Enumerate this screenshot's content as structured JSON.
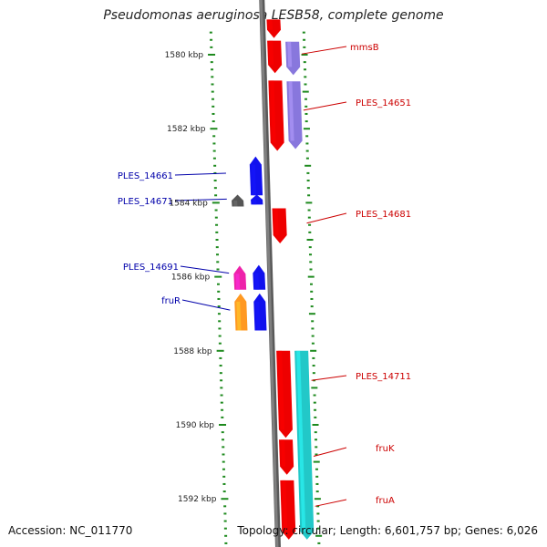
{
  "title": "Pseudomonas aeruginosa LESB58, complete genome",
  "footer": {
    "accession": "Accession: NC_011770",
    "topology": "Topology: circular; Length: 6,601,757 bp; Genes: 6,026"
  },
  "colors": {
    "backbone": "#808080",
    "tick": "#1e8a1e",
    "red": "#ee0000",
    "purple": "#8877dd",
    "blue": "#1111ee",
    "teal": "#22c8c8",
    "pink": "#ee22aa",
    "orange": "#ff9922",
    "gray": "#555555",
    "label_right": "#cc0000",
    "label_left": "#0000aa"
  },
  "kbp_labels": [
    {
      "kbp": 1580,
      "text": "1580 kbp"
    },
    {
      "kbp": 1582,
      "text": "1582 kbp"
    },
    {
      "kbp": 1584,
      "text": "1584 kbp"
    },
    {
      "kbp": 1586,
      "text": "1586 kbp"
    },
    {
      "kbp": 1588,
      "text": "1588 kbp"
    },
    {
      "kbp": 1590,
      "text": "1590 kbp"
    },
    {
      "kbp": 1592,
      "text": "1592 kbp"
    }
  ],
  "genes": [
    {
      "track": "fwd1",
      "start": 1579.05,
      "end": 1579.55,
      "strand": "-",
      "color": "red"
    },
    {
      "track": "fwd1",
      "start": 1579.62,
      "end": 1580.5,
      "strand": "-",
      "color": "red"
    },
    {
      "track": "fwd1",
      "start": 1580.7,
      "end": 1582.6,
      "strand": "-",
      "color": "red"
    },
    {
      "track": "fwd2",
      "start": 1579.65,
      "end": 1580.55,
      "strand": "-",
      "color": "purple"
    },
    {
      "track": "fwd2",
      "start": 1580.72,
      "end": 1582.55,
      "strand": "-",
      "color": "purple"
    },
    {
      "track": "fwd1",
      "start": 1584.15,
      "end": 1585.1,
      "strand": "-",
      "color": "red"
    },
    {
      "track": "fwd1",
      "start": 1588.0,
      "end": 1590.35,
      "strand": "-",
      "color": "red"
    },
    {
      "track": "fwd1",
      "start": 1590.4,
      "end": 1591.35,
      "strand": "-",
      "color": "red"
    },
    {
      "track": "fwd1",
      "start": 1591.5,
      "end": 1593.1,
      "strand": "-",
      "color": "red"
    },
    {
      "track": "fwd2",
      "start": 1588.0,
      "end": 1593.1,
      "strand": "-",
      "color": "teal"
    },
    {
      "track": "rev1",
      "start": 1582.75,
      "end": 1583.8,
      "strand": "+",
      "color": "blue"
    },
    {
      "track": "rev1",
      "start": 1583.78,
      "end": 1584.05,
      "strand": "+",
      "color": "blue"
    },
    {
      "track": "rev2",
      "start": 1583.78,
      "end": 1584.1,
      "strand": "+",
      "color": "gray"
    },
    {
      "track": "rev1",
      "start": 1585.68,
      "end": 1586.35,
      "strand": "+",
      "color": "blue"
    },
    {
      "track": "rev1",
      "start": 1586.45,
      "end": 1587.45,
      "strand": "+",
      "color": "blue"
    },
    {
      "track": "rev2",
      "start": 1585.7,
      "end": 1586.35,
      "strand": "+",
      "color": "pink"
    },
    {
      "track": "rev2",
      "start": 1586.45,
      "end": 1587.45,
      "strand": "+",
      "color": "orange"
    }
  ],
  "gene_labels": [
    {
      "text": "mmsB",
      "side": "right",
      "pointer_kbp": 1579.98
    },
    {
      "text": "PLES_14651",
      "side": "right",
      "pointer_kbp": 1581.5
    },
    {
      "text": "PLES_14681",
      "side": "right",
      "pointer_kbp": 1584.55
    },
    {
      "text": "PLES_14711",
      "side": "right",
      "pointer_kbp": 1588.8
    },
    {
      "text": "fruK",
      "side": "right",
      "pointer_kbp": 1590.85
    },
    {
      "text": "fruA",
      "side": "right",
      "pointer_kbp": 1592.2
    },
    {
      "text": "PLES_14661",
      "side": "left",
      "pointer_kbp": 1583.25
    },
    {
      "text": "PLES_14671",
      "side": "left",
      "pointer_kbp": 1583.95
    },
    {
      "text": "PLES_14691",
      "side": "left",
      "pointer_kbp": 1585.95
    },
    {
      "text": "fruR",
      "side": "left",
      "pointer_kbp": 1586.95
    }
  ]
}
